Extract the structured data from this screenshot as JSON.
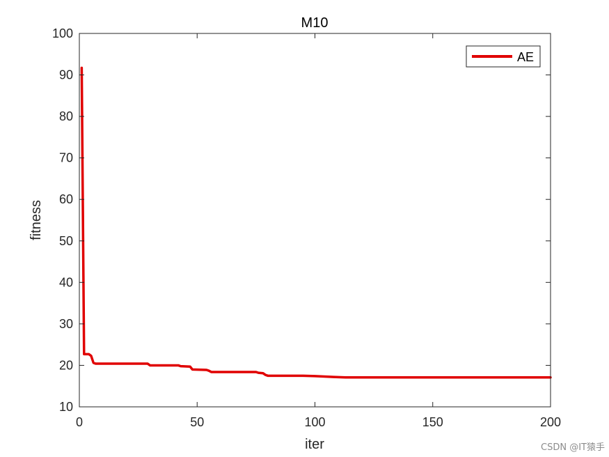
{
  "chart_data": {
    "type": "line",
    "title": "M10",
    "xlabel": "iter",
    "ylabel": "fitness",
    "xlim": [
      0,
      200
    ],
    "ylim": [
      10,
      100
    ],
    "xticks": [
      0,
      50,
      100,
      150,
      200
    ],
    "yticks": [
      10,
      20,
      30,
      40,
      50,
      60,
      70,
      80,
      90,
      100
    ],
    "grid": false,
    "legend_position": "top-right",
    "series": [
      {
        "name": "AE",
        "color": "#e00000",
        "x": [
          1,
          2,
          3,
          4,
          5,
          6,
          7,
          29,
          30,
          42,
          43,
          47,
          48,
          54,
          55,
          56,
          75,
          76,
          78,
          79,
          80,
          95,
          100,
          108,
          113,
          200
        ],
        "y": [
          91.7,
          22.7,
          22.7,
          22.7,
          22.3,
          20.6,
          20.4,
          20.4,
          20.0,
          20.0,
          19.8,
          19.7,
          19.0,
          18.9,
          18.7,
          18.4,
          18.4,
          18.2,
          18.1,
          17.7,
          17.5,
          17.5,
          17.4,
          17.2,
          17.1,
          17.1
        ]
      }
    ]
  },
  "watermark": "CSDN @IT猿手"
}
